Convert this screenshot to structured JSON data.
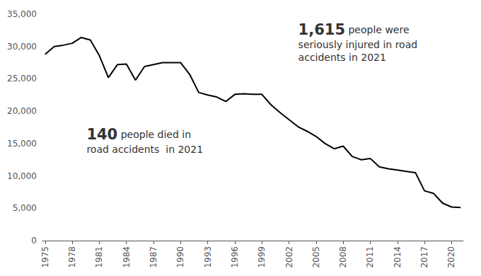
{
  "chart_data": {
    "type": "line",
    "x": [
      1975,
      1976,
      1977,
      1978,
      1979,
      1980,
      1981,
      1982,
      1983,
      1984,
      1985,
      1986,
      1987,
      1988,
      1989,
      1990,
      1991,
      1992,
      1993,
      1994,
      1995,
      1996,
      1997,
      1998,
      1999,
      2000,
      2001,
      2002,
      2003,
      2004,
      2005,
      2006,
      2007,
      2008,
      2009,
      2010,
      2011,
      2012,
      2013,
      2014,
      2015,
      2016,
      2017,
      2018,
      2019,
      2020,
      2021
    ],
    "values": [
      28800,
      30000,
      30200,
      30500,
      31400,
      31000,
      28600,
      25200,
      27200,
      27300,
      24800,
      26900,
      27200,
      27500,
      27500,
      27500,
      25700,
      22900,
      22500,
      22200,
      21500,
      22600,
      22700,
      22600,
      22600,
      21000,
      19800,
      18700,
      17600,
      16900,
      16100,
      15000,
      14200,
      14600,
      13000,
      12500,
      12700,
      11400,
      11100,
      10900,
      10700,
      10500,
      7700,
      7300,
      5800,
      5200,
      5100
    ],
    "color": "#000000",
    "xlim": [
      1974.7,
      2021.3
    ],
    "xticks": [
      1975,
      1978,
      1981,
      1984,
      1987,
      1990,
      1993,
      1996,
      1999,
      2002,
      2005,
      2008,
      2011,
      2014,
      2017,
      2020
    ],
    "ylim": [
      0,
      35000
    ],
    "yticks": [
      0,
      {
        "value": 5000,
        "label": "5,000"
      },
      {
        "value": 10000,
        "label": "10,000"
      },
      {
        "value": 15000,
        "label": "15,000"
      },
      {
        "value": 20000,
        "label": "20,000"
      },
      {
        "value": 25000,
        "label": "25,000"
      },
      {
        "value": 30000,
        "label": "30,000"
      },
      {
        "value": 35000,
        "label": "35,000"
      }
    ],
    "grid": false,
    "annotations": [
      {
        "bold": "140",
        "text": "140 people died in\nroad accidents  in 2021"
      },
      {
        "bold": "1,615",
        "text": "1,615 people were\nseriously injured in road\naccidents in 2021"
      }
    ]
  }
}
